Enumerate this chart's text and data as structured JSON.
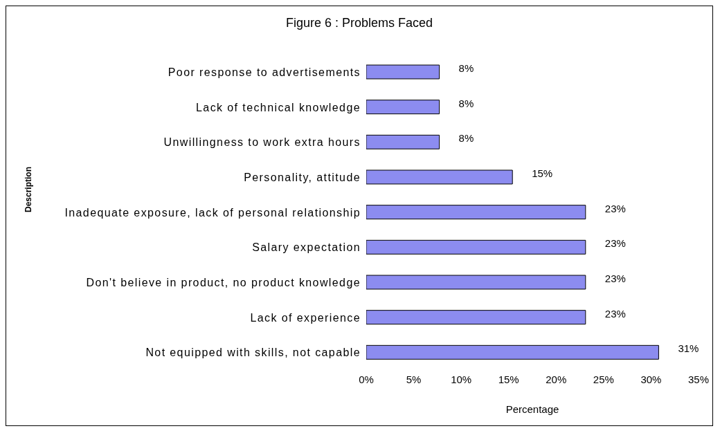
{
  "chart_data": {
    "type": "bar",
    "orientation": "horizontal",
    "title": "Figure 6 : Problems Faced",
    "xlabel": "Percentage",
    "ylabel": "Description",
    "categories": [
      "Poor response to advertisements",
      "Lack of technical knowledge",
      "Unwillingness to work extra hours",
      "Personality, attitude",
      "Inadequate exposure, lack of personal relationship",
      "Salary expectation",
      "Don't believe in product, no product knowledge",
      "Lack of experience",
      "Not equipped with skills, not capable"
    ],
    "values": [
      7.7,
      7.7,
      7.7,
      15.4,
      23.1,
      23.1,
      23.1,
      23.1,
      30.8
    ],
    "value_labels": [
      "8%",
      "8%",
      "8%",
      "15%",
      "23%",
      "23%",
      "23%",
      "23%",
      "31%"
    ],
    "color": "#8c8cf0",
    "xlim": [
      0,
      35
    ],
    "xticks": [
      {
        "value": 0,
        "label": "0%"
      },
      {
        "value": 5,
        "label": "5%"
      },
      {
        "value": 10,
        "label": "10%"
      },
      {
        "value": 15,
        "label": "15%"
      },
      {
        "value": 20,
        "label": "20%"
      },
      {
        "value": 25,
        "label": "25%"
      },
      {
        "value": 30,
        "label": "30%"
      },
      {
        "value": 35,
        "label": "35%"
      }
    ],
    "grid": false,
    "legend": false
  }
}
